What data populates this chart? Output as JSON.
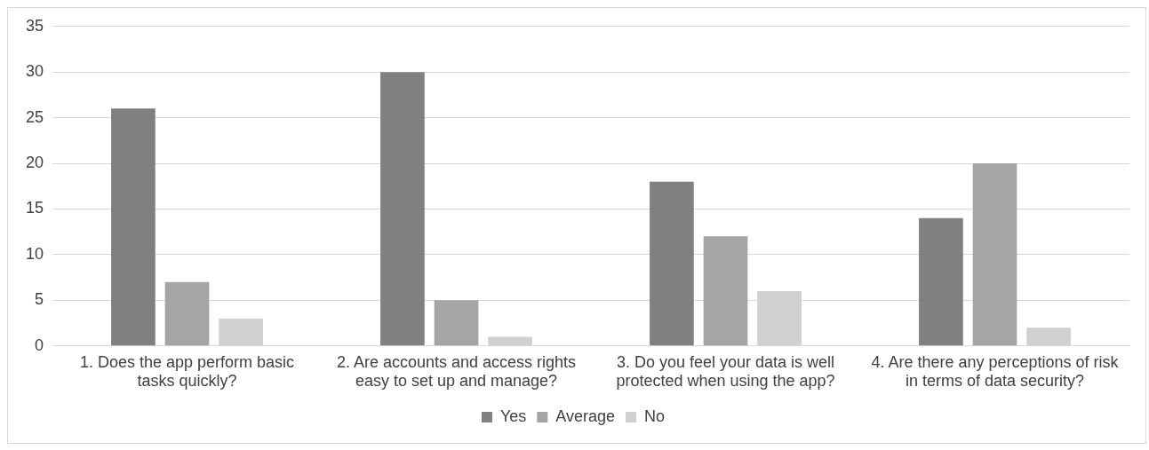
{
  "chart_data": {
    "type": "bar",
    "categories": [
      "1. Does the app perform basic tasks quickly?",
      "2. Are accounts and access rights easy to set up and manage?",
      "3. Do you feel your data is well protected when using the app?",
      "4. Are there any perceptions of risk in terms of data security?"
    ],
    "series": [
      {
        "name": "Yes",
        "color": "#808080",
        "values": [
          26,
          30,
          18,
          14
        ]
      },
      {
        "name": "Average",
        "color": "#a5a5a5",
        "values": [
          7,
          5,
          12,
          20
        ]
      },
      {
        "name": "No",
        "color": "#d0d0d0",
        "values": [
          3,
          1,
          6,
          2
        ]
      }
    ],
    "ylim": [
      0,
      35
    ],
    "yticks": [
      0,
      5,
      10,
      15,
      20,
      25,
      30,
      35
    ],
    "grid": "y",
    "legend": "bottom"
  }
}
